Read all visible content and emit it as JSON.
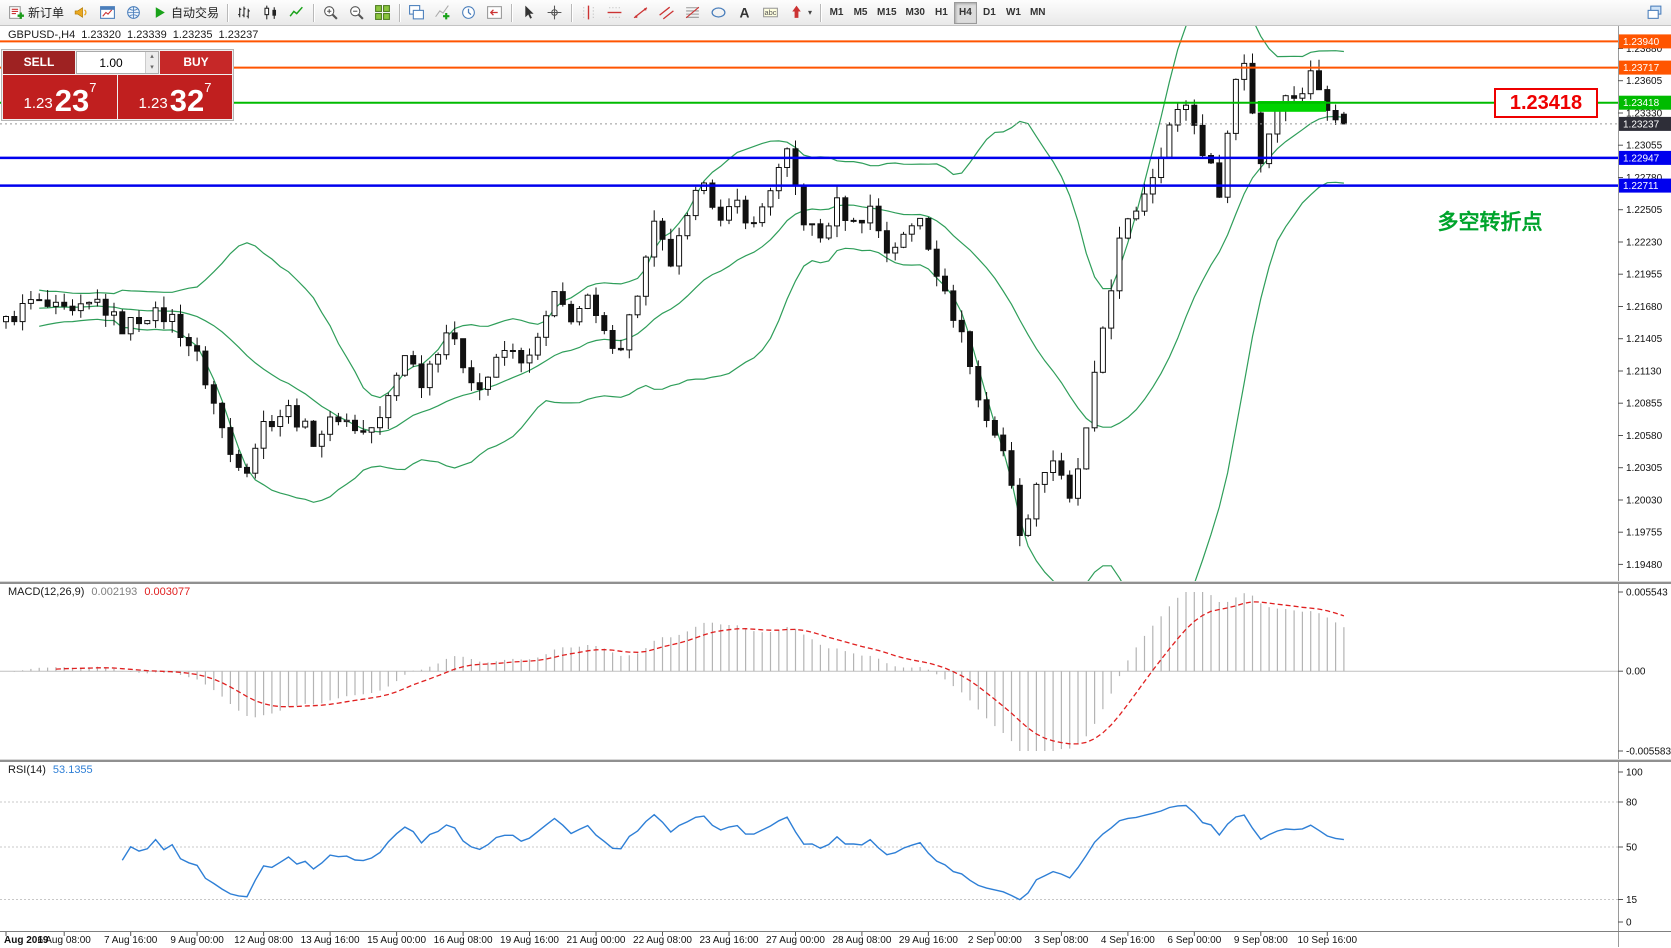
{
  "toolbar": {
    "groups": [
      {
        "items": [
          {
            "icon": "new-order",
            "name": "new-order",
            "label": "新订单"
          },
          {
            "icon": "horn",
            "name": "alerts"
          },
          {
            "icon": "chart-window",
            "name": "new-chart"
          },
          {
            "icon": "globe",
            "name": "market-watch"
          },
          {
            "icon": "play",
            "name": "autotrading",
            "label": "自动交易"
          }
        ]
      },
      {
        "items": [
          {
            "icon": "bar-chart",
            "name": "bars-mode"
          },
          {
            "icon": "candles",
            "name": "candles-mode"
          },
          {
            "icon": "line-chart",
            "name": "line-mode"
          }
        ]
      },
      {
        "items": [
          {
            "icon": "zoom-in",
            "name": "zoom-in"
          },
          {
            "icon": "zoom-out",
            "name": "zoom-out"
          },
          {
            "icon": "tile-windows",
            "name": "tile-windows"
          }
        ]
      },
      {
        "items": [
          {
            "icon": "cascade",
            "name": "new-window"
          },
          {
            "icon": "indicators",
            "name": "indicators-list"
          },
          {
            "icon": "periods",
            "name": "periods"
          },
          {
            "icon": "shift",
            "name": "chart-shift"
          }
        ]
      },
      {
        "items": [
          {
            "icon": "cursor",
            "name": "cursor-tool"
          },
          {
            "icon": "crosshair",
            "name": "crosshair-tool"
          }
        ]
      },
      {
        "items": [
          {
            "icon": "vline",
            "name": "vertical-line-tool"
          },
          {
            "icon": "hline",
            "name": "horizontal-line-tool"
          },
          {
            "icon": "trendline",
            "name": "trendline-tool"
          },
          {
            "icon": "channel",
            "name": "channel-tool"
          },
          {
            "icon": "fibo",
            "name": "fibonacci-tool"
          },
          {
            "icon": "shapes",
            "name": "shapes-tool"
          },
          {
            "icon": "text",
            "name": "text-tool"
          },
          {
            "icon": "label",
            "name": "label-tool"
          },
          {
            "icon": "arrows",
            "name": "arrows-tool",
            "dropdown": true
          }
        ]
      },
      {
        "items": [
          {
            "tf": "M1"
          },
          {
            "tf": "M5"
          },
          {
            "tf": "M15"
          },
          {
            "tf": "M30"
          },
          {
            "tf": "H1"
          },
          {
            "tf": "H4",
            "active": true
          },
          {
            "tf": "D1"
          },
          {
            "tf": "W1"
          },
          {
            "tf": "MN"
          }
        ]
      }
    ],
    "right_items": [
      {
        "icon": "window-restore",
        "name": "window-controls"
      }
    ]
  },
  "header": {
    "symbol": "GBPUSD-,H4",
    "open": "1.23320",
    "high": "1.23339",
    "low": "1.23235",
    "close": "1.23237"
  },
  "quote_panel": {
    "sell_label": "SELL",
    "buy_label": "BUY",
    "volume": "1.00",
    "sell_price": {
      "prefix": "1.23",
      "main": "23",
      "sup": "7"
    },
    "buy_price": {
      "prefix": "1.23",
      "main": "32",
      "sup": "7"
    },
    "colors": {
      "sell_button": "#9e2222",
      "buy_button": "#c62828",
      "sell_block": "#c01f1f",
      "buy_block": "#c01f1f"
    }
  },
  "chart_data": {
    "type": "candlestick",
    "symbol": "GBPUSD",
    "timeframe": "H4",
    "candles_count": 162,
    "last_close": 1.23237,
    "last_candle": {
      "open": 1.2332,
      "high": 1.23339,
      "low": 1.23235,
      "close": 1.23237
    },
    "y_axis": {
      "max": 1.23995,
      "min": 1.1939,
      "tick_labels": [
        "1.23880",
        "1.23605",
        "1.23330",
        "1.23055",
        "1.22780",
        "1.22505",
        "1.22230",
        "1.21955",
        "1.21680",
        "1.21405",
        "1.21130",
        "1.20855",
        "1.20580",
        "1.20305",
        "1.20030",
        "1.19755",
        "1.19480"
      ]
    },
    "price_lines": [
      {
        "price": 1.2394,
        "color": "#ff5500",
        "width": 2
      },
      {
        "price": 1.23717,
        "color": "#ff5500",
        "width": 2
      },
      {
        "price": 1.23418,
        "color": "#00bb00",
        "width": 2
      },
      {
        "price": 1.22947,
        "color": "#0000ee",
        "width": 2.5
      },
      {
        "price": 1.22711,
        "color": "#0000ee",
        "width": 2.5
      }
    ],
    "price_tags": [
      {
        "label": "1.23940",
        "price": 1.2394,
        "color": "#ff5500"
      },
      {
        "label": "1.23717",
        "price": 1.23717,
        "color": "#ff5500"
      },
      {
        "label": "1.23418",
        "price": 1.23418,
        "color": "#00bb00"
      },
      {
        "label": "1.23237",
        "price": 1.23237,
        "color": "#2e2e38",
        "current": true
      },
      {
        "label": "1.22947",
        "price": 1.22947,
        "color": "#0000ee"
      },
      {
        "label": "1.22711",
        "price": 1.22711,
        "color": "#0000ee"
      }
    ],
    "current_price": 1.23237,
    "zone": {
      "start_index": 151,
      "end_index": 158.5,
      "price_top": 1.23432,
      "price_bottom": 1.2334,
      "color": "#00d300"
    },
    "callout": {
      "text": "1.23418",
      "price": 1.23418,
      "color": "#ee0000"
    },
    "note": {
      "text": "多空转折点",
      "color": "#00a42c"
    },
    "colors": {
      "bollinger": "#2f9e5a",
      "candle_up": "#ffffff",
      "candle_down": "#111111",
      "candle_outline": "#111111"
    },
    "bollinger_period": 20,
    "price_path": [
      [
        0,
        1.2155
      ],
      [
        3,
        1.2172
      ],
      [
        8,
        1.216
      ],
      [
        11,
        1.2172
      ],
      [
        14,
        1.215
      ],
      [
        17,
        1.2162
      ],
      [
        20,
        1.2158
      ],
      [
        23,
        1.2125
      ],
      [
        25,
        1.2085
      ],
      [
        27,
        1.2042
      ],
      [
        29,
        1.2032
      ],
      [
        31,
        1.2068
      ],
      [
        34,
        1.208
      ],
      [
        37,
        1.2055
      ],
      [
        40,
        1.2075
      ],
      [
        43,
        1.206
      ],
      [
        45,
        1.207
      ],
      [
        48,
        1.213
      ],
      [
        50,
        1.2105
      ],
      [
        53,
        1.2148
      ],
      [
        55,
        1.212
      ],
      [
        57,
        1.2098
      ],
      [
        60,
        1.213
      ],
      [
        63,
        1.2122
      ],
      [
        66,
        1.2175
      ],
      [
        68,
        1.216
      ],
      [
        70,
        1.2172
      ],
      [
        72,
        1.2142
      ],
      [
        74,
        1.2136
      ],
      [
        76,
        1.218
      ],
      [
        78,
        1.2235
      ],
      [
        80,
        1.2205
      ],
      [
        82,
        1.224
      ],
      [
        84,
        1.228
      ],
      [
        86,
        1.2238
      ],
      [
        88,
        1.2256
      ],
      [
        90,
        1.2236
      ],
      [
        92,
        1.227
      ],
      [
        94,
        1.2296
      ],
      [
        96,
        1.2242
      ],
      [
        98,
        1.2226
      ],
      [
        100,
        1.2255
      ],
      [
        102,
        1.2238
      ],
      [
        104,
        1.2252
      ],
      [
        106,
        1.2216
      ],
      [
        108,
        1.2226
      ],
      [
        110,
        1.2246
      ],
      [
        113,
        1.2176
      ],
      [
        115,
        1.2146
      ],
      [
        117,
        1.2088
      ],
      [
        119,
        1.206
      ],
      [
        121,
        1.2022
      ],
      [
        122,
        1.1968
      ],
      [
        124,
        1.2018
      ],
      [
        126,
        1.2038
      ],
      [
        128,
        1.2
      ],
      [
        130,
        1.206
      ],
      [
        132,
        1.215
      ],
      [
        134,
        1.2222
      ],
      [
        136,
        1.2252
      ],
      [
        138,
        1.2282
      ],
      [
        140,
        1.2322
      ],
      [
        142,
        1.2342
      ],
      [
        144,
        1.2302
      ],
      [
        146,
        1.2268
      ],
      [
        148,
        1.2362
      ],
      [
        149,
        1.2378
      ],
      [
        151,
        1.2292
      ],
      [
        153,
        1.2342
      ],
      [
        156,
        1.2352
      ],
      [
        157,
        1.2366
      ],
      [
        159,
        1.2342
      ],
      [
        161,
        1.23237
      ]
    ],
    "indicators": {
      "macd": {
        "label": "MACD(12,26,9)",
        "value_main": "0.002193",
        "value_signal": "0.003077",
        "scale_labels": [
          "0.005543",
          "0.00",
          "-0.005583"
        ],
        "scale_max": 0.005543,
        "scale_min": -0.005583,
        "histogram_color": "#b4b4b4",
        "signal_color": "#e02020"
      },
      "rsi": {
        "label": "RSI(14)",
        "value": "53.1355",
        "color": "#2e7fd6",
        "scale_labels": [
          {
            "t": "100",
            "v": 100
          },
          {
            "t": "80",
            "v": 80
          },
          {
            "t": "50",
            "v": 50
          },
          {
            "t": "15",
            "v": 15
          },
          {
            "t": "0",
            "v": 0
          }
        ],
        "levels": [
          80,
          50,
          15
        ]
      }
    },
    "time_axis": [
      {
        "t": "Aug 2019",
        "i": 0
      },
      {
        "t": "6 Aug 08:00",
        "i": 7
      },
      {
        "t": "7 Aug 16:00",
        "i": 15
      },
      {
        "t": "9 Aug 00:00",
        "i": 23
      },
      {
        "t": "12 Aug 08:00",
        "i": 31
      },
      {
        "t": "13 Aug 16:00",
        "i": 39
      },
      {
        "t": "15 Aug 00:00",
        "i": 47
      },
      {
        "t": "16 Aug 08:00",
        "i": 55
      },
      {
        "t": "19 Aug 16:00",
        "i": 63
      },
      {
        "t": "21 Aug 00:00",
        "i": 71
      },
      {
        "t": "22 Aug 08:00",
        "i": 79
      },
      {
        "t": "23 Aug 16:00",
        "i": 87
      },
      {
        "t": "27 Aug 00:00",
        "i": 95
      },
      {
        "t": "28 Aug 08:00",
        "i": 103
      },
      {
        "t": "29 Aug 16:00",
        "i": 111
      },
      {
        "t": "2 Sep 00:00",
        "i": 119
      },
      {
        "t": "3 Sep 08:00",
        "i": 127
      },
      {
        "t": "4 Sep 16:00",
        "i": 135
      },
      {
        "t": "6 Sep 00:00",
        "i": 143
      },
      {
        "t": "9 Sep 08:00",
        "i": 151
      },
      {
        "t": "10 Sep 16:00",
        "i": 159
      }
    ]
  }
}
